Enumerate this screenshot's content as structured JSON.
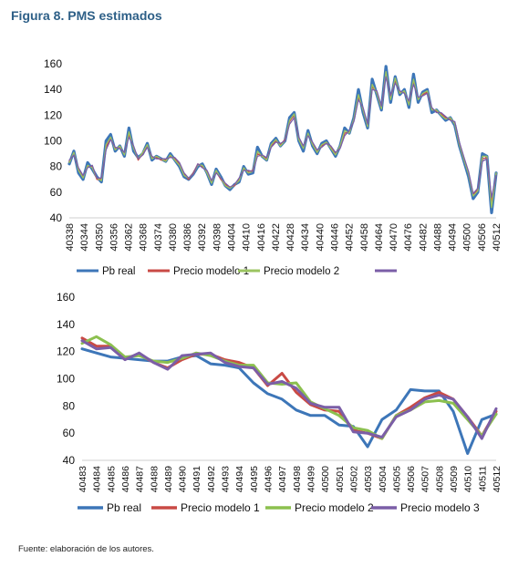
{
  "figure": {
    "title": "Figura 8. PMS estimados",
    "source": "Fuente: elaboración de los autores."
  },
  "chart_data": [
    {
      "type": "line",
      "ylim": [
        40,
        160
      ],
      "yticks": [
        40,
        60,
        80,
        100,
        120,
        140,
        160
      ],
      "grid": false,
      "legend_position": "bottom",
      "x_start": 40338,
      "x_end": 40512,
      "tick_step": 6,
      "x_ticks": [
        "40338",
        "40344",
        "40350",
        "40356",
        "40362",
        "40368",
        "40374",
        "40380",
        "40386",
        "40392",
        "40398",
        "40404",
        "40410",
        "40416",
        "40422",
        "40428",
        "40434",
        "40440",
        "40446",
        "40452",
        "40458",
        "40464",
        "40470",
        "40476",
        "40482",
        "40488",
        "40494",
        "40500",
        "40506",
        "40512"
      ],
      "legend_labels": [
        "Pb real",
        "Precio modelo 1",
        "Precio modelo 2",
        ""
      ],
      "colors": [
        "#3d76b8",
        "#c94a45",
        "#9bc460",
        "#7b5ea7"
      ],
      "series": [
        {
          "name": "Pb real",
          "values": [
            82,
            92,
            75,
            70,
            83,
            78,
            72,
            68,
            100,
            105,
            92,
            96,
            88,
            110,
            92,
            87,
            90,
            98,
            85,
            88,
            86,
            84,
            90,
            85,
            80,
            72,
            70,
            74,
            80,
            82,
            75,
            66,
            78,
            72,
            65,
            62,
            66,
            68,
            80,
            74,
            75,
            95,
            88,
            85,
            98,
            102,
            96,
            100,
            118,
            122,
            100,
            92,
            108,
            96,
            90,
            98,
            100,
            94,
            88,
            96,
            110,
            106,
            118,
            140,
            122,
            110,
            148,
            136,
            124,
            158,
            130,
            150,
            136,
            140,
            126,
            152,
            130,
            138,
            140,
            122,
            124,
            120,
            116,
            118,
            112,
            96,
            84,
            72,
            55,
            60,
            90,
            88,
            44,
            75
          ]
        },
        {
          "name": "Precio modelo 1",
          "values": [
            84,
            90,
            78,
            72,
            80,
            80,
            70,
            70,
            95,
            102,
            94,
            95,
            90,
            105,
            95,
            85,
            90,
            96,
            87,
            87,
            85,
            85,
            88,
            86,
            82,
            74,
            70,
            75,
            82,
            80,
            76,
            68,
            76,
            70,
            66,
            64,
            65,
            70,
            78,
            76,
            77,
            90,
            88,
            86,
            96,
            100,
            97,
            101,
            115,
            120,
            102,
            95,
            105,
            98,
            92,
            96,
            99,
            95,
            90,
            95,
            106,
            107,
            116,
            134,
            125,
            112,
            142,
            138,
            126,
            152,
            134,
            147,
            138,
            138,
            130,
            146,
            133,
            136,
            138,
            125,
            123,
            121,
            118,
            117,
            114,
            98,
            86,
            75,
            58,
            62,
            86,
            87,
            52,
            74
          ]
        },
        {
          "name": "Precio modelo 2",
          "values": [
            83,
            91,
            77,
            71,
            81,
            79,
            71,
            69,
            97,
            103,
            93,
            96,
            89,
            107,
            94,
            86,
            91,
            97,
            86,
            88,
            86,
            84,
            89,
            85,
            81,
            73,
            71,
            74,
            81,
            81,
            75,
            67,
            77,
            71,
            65,
            63,
            66,
            69,
            79,
            75,
            76,
            92,
            88,
            85,
            97,
            101,
            96,
            100,
            116,
            121,
            101,
            94,
            106,
            97,
            91,
            97,
            99,
            94,
            89,
            96,
            108,
            106,
            117,
            136,
            124,
            111,
            144,
            137,
            125,
            154,
            132,
            149,
            137,
            139,
            128,
            148,
            132,
            137,
            139,
            124,
            124,
            120,
            117,
            118,
            113,
            97,
            85,
            74,
            57,
            61,
            88,
            88,
            48,
            75
          ]
        },
        {
          "name": "",
          "values": [
            85,
            89,
            79,
            73,
            79,
            81,
            71,
            71,
            93,
            101,
            95,
            94,
            91,
            103,
            96,
            86,
            89,
            95,
            88,
            86,
            86,
            86,
            87,
            87,
            83,
            75,
            71,
            74,
            82,
            79,
            77,
            69,
            75,
            71,
            67,
            64,
            66,
            71,
            77,
            77,
            76,
            88,
            89,
            87,
            95,
            99,
            98,
            100,
            113,
            118,
            103,
            96,
            104,
            99,
            93,
            95,
            98,
            96,
            91,
            94,
            104,
            108,
            115,
            132,
            126,
            113,
            140,
            139,
            127,
            150,
            135,
            145,
            139,
            137,
            131,
            144,
            134,
            135,
            137,
            126,
            122,
            122,
            119,
            116,
            115,
            99,
            87,
            76,
            59,
            63,
            84,
            86,
            56,
            73
          ]
        }
      ]
    },
    {
      "type": "line",
      "ylim": [
        40,
        160
      ],
      "yticks": [
        40,
        60,
        80,
        100,
        120,
        140,
        160
      ],
      "grid": false,
      "legend_position": "bottom",
      "categories": [
        "40483",
        "40484",
        "40485",
        "40486",
        "40487",
        "40488",
        "40489",
        "40490",
        "40491",
        "40492",
        "40493",
        "40494",
        "40495",
        "40496",
        "40497",
        "40498",
        "40499",
        "40500",
        "40501",
        "40502",
        "40503",
        "40504",
        "40505",
        "40506",
        "40507",
        "40508",
        "40509",
        "40510",
        "40511",
        "40512"
      ],
      "colors": [
        "#3d76b8",
        "#c94a45",
        "#8cc04f",
        "#7b5ea7"
      ],
      "series": [
        {
          "name": "Pb real",
          "values": [
            122,
            119,
            116,
            115,
            114,
            113,
            113,
            116,
            117,
            111,
            110,
            108,
            97,
            89,
            85,
            77,
            73,
            73,
            66,
            65,
            50,
            70,
            77,
            92,
            91,
            91,
            76,
            45,
            70,
            74
          ]
        },
        {
          "name": "Precio modelo 1",
          "values": [
            130,
            124,
            124,
            115,
            118,
            112,
            108,
            114,
            118,
            118,
            114,
            112,
            108,
            95,
            104,
            90,
            81,
            77,
            76,
            62,
            60,
            56,
            73,
            79,
            86,
            90,
            85,
            72,
            58,
            76
          ]
        },
        {
          "name": "Precio modelo 2",
          "values": [
            126,
            131,
            125,
            116,
            117,
            113,
            112,
            115,
            119,
            117,
            113,
            110,
            110,
            97,
            96,
            97,
            83,
            78,
            73,
            64,
            62,
            56,
            73,
            77,
            83,
            84,
            82,
            70,
            58,
            74
          ]
        },
        {
          "name": "Precio modelo 3",
          "values": [
            128,
            122,
            123,
            114,
            119,
            112,
            107,
            117,
            118,
            119,
            112,
            109,
            108,
            96,
            98,
            93,
            82,
            79,
            79,
            61,
            60,
            57,
            72,
            77,
            85,
            88,
            85,
            72,
            56,
            78
          ]
        }
      ]
    }
  ]
}
